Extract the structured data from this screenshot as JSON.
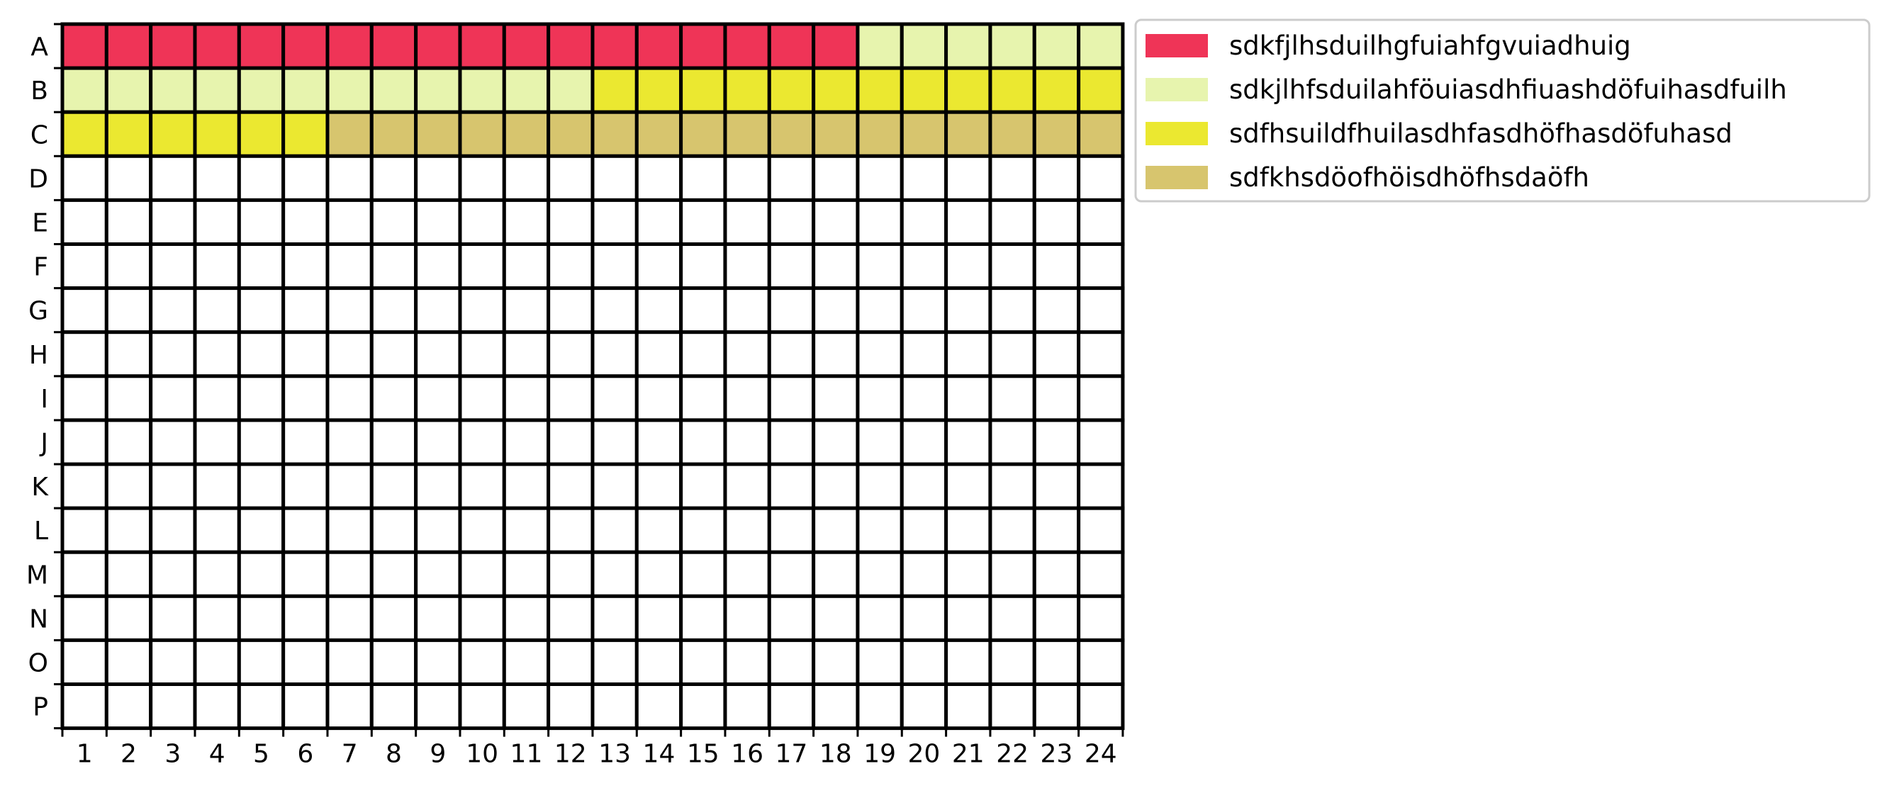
{
  "chart_data": {
    "type": "heatmap",
    "title": "",
    "xlabel": "",
    "ylabel": "",
    "rows": [
      "A",
      "B",
      "C",
      "D",
      "E",
      "F",
      "G",
      "H",
      "I",
      "J",
      "K",
      "L",
      "M",
      "N",
      "O",
      "P"
    ],
    "columns": [
      "1",
      "2",
      "3",
      "4",
      "5",
      "6",
      "7",
      "8",
      "9",
      "10",
      "11",
      "12",
      "13",
      "14",
      "15",
      "16",
      "17",
      "18",
      "19",
      "20",
      "21",
      "22",
      "23",
      "24"
    ],
    "grid": true,
    "legend_position": "right, outside plot, top",
    "categories": [
      {
        "name": "sdkfjlhsduilhgfuiahfgvuiadhuig",
        "color": "#EF3457"
      },
      {
        "name": "sdkjlhfsduilahföuiasdhfiuashdöfuihasdfuilh",
        "color": "#E7F4AE"
      },
      {
        "name": "sdfhsuildfhuilasdhfasdhöfhasdöfuhasd",
        "color": "#EBE830"
      },
      {
        "name": "sdfkhsdöofhöisdhöfhsdaöfh",
        "color": "#D7C56E"
      }
    ],
    "cells": [
      {
        "row": "A",
        "from": 1,
        "to": 18,
        "category": 0
      },
      {
        "row": "A",
        "from": 19,
        "to": 24,
        "category": 1
      },
      {
        "row": "B",
        "from": 1,
        "to": 12,
        "category": 1
      },
      {
        "row": "B",
        "from": 13,
        "to": 24,
        "category": 2
      },
      {
        "row": "C",
        "from": 1,
        "to": 6,
        "category": 2
      },
      {
        "row": "C",
        "from": 7,
        "to": 24,
        "category": 3
      }
    ],
    "empty_color": "#FFFFFF"
  }
}
